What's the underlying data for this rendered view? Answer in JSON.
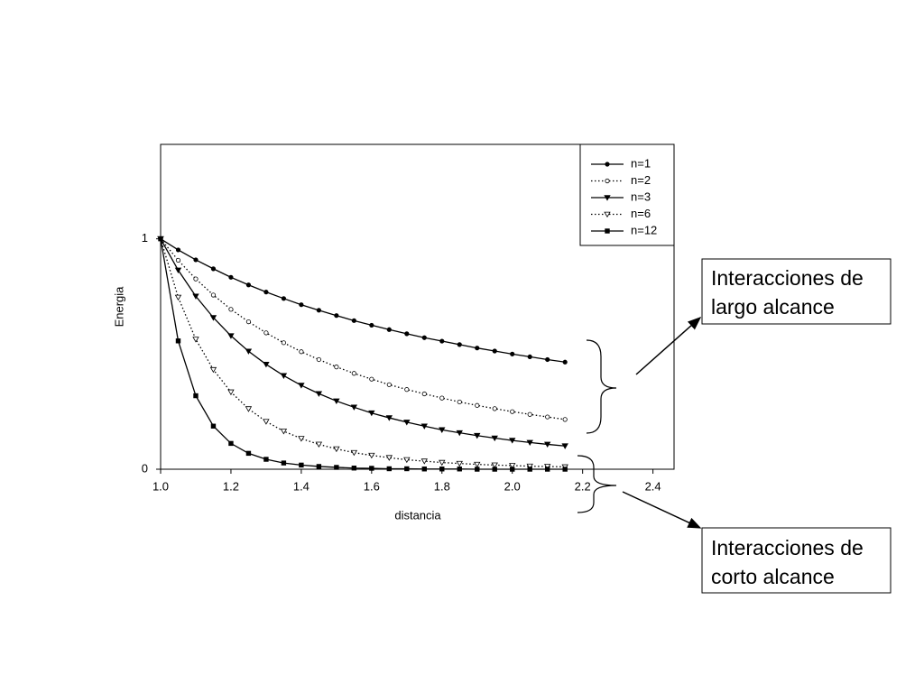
{
  "chart_data": {
    "type": "line",
    "xlabel": "distancia",
    "ylabel": "Energia",
    "x": [
      1.0,
      1.05,
      1.1,
      1.15,
      1.2,
      1.25,
      1.3,
      1.35,
      1.4,
      1.45,
      1.5,
      1.55,
      1.6,
      1.65,
      1.7,
      1.75,
      1.8,
      1.85,
      1.9,
      1.95,
      2.0,
      2.05,
      2.1,
      2.15
    ],
    "series": [
      {
        "name": "n=1",
        "color": "#000000",
        "marker": "circle",
        "filled": true,
        "dash": "solid",
        "values": [
          1,
          0.952,
          0.909,
          0.87,
          0.833,
          0.8,
          0.769,
          0.741,
          0.714,
          0.69,
          0.667,
          0.645,
          0.625,
          0.606,
          0.588,
          0.571,
          0.556,
          0.541,
          0.526,
          0.513,
          0.5,
          0.488,
          0.476,
          0.465
        ]
      },
      {
        "name": "n=2",
        "color": "#000000",
        "marker": "circle",
        "filled": false,
        "dash": "dotted",
        "values": [
          1,
          0.907,
          0.826,
          0.756,
          0.694,
          0.64,
          0.592,
          0.549,
          0.51,
          0.476,
          0.444,
          0.416,
          0.391,
          0.367,
          0.346,
          0.327,
          0.309,
          0.292,
          0.277,
          0.263,
          0.25,
          0.238,
          0.227,
          0.216
        ]
      },
      {
        "name": "n=3",
        "color": "#000000",
        "marker": "triangle-down",
        "filled": true,
        "dash": "solid",
        "values": [
          1,
          0.864,
          0.751,
          0.658,
          0.579,
          0.512,
          0.455,
          0.406,
          0.364,
          0.328,
          0.296,
          0.269,
          0.244,
          0.223,
          0.204,
          0.187,
          0.171,
          0.158,
          0.146,
          0.135,
          0.125,
          0.116,
          0.108,
          0.101
        ]
      },
      {
        "name": "n=6",
        "color": "#000000",
        "marker": "triangle-down",
        "filled": false,
        "dash": "dotted",
        "values": [
          1,
          0.746,
          0.564,
          0.432,
          0.335,
          0.262,
          0.207,
          0.165,
          0.133,
          0.108,
          0.088,
          0.072,
          0.06,
          0.05,
          0.041,
          0.035,
          0.029,
          0.025,
          0.021,
          0.018,
          0.016,
          0.013,
          0.012,
          0.01
        ]
      },
      {
        "name": "n=12",
        "color": "#000000",
        "marker": "square",
        "filled": true,
        "dash": "solid",
        "values": [
          1,
          0.557,
          0.319,
          0.187,
          0.112,
          0.069,
          0.043,
          0.027,
          0.018,
          0.012,
          0.008,
          0.005,
          0.004,
          0.002,
          0.002,
          0.001,
          0.001,
          0.001,
          0,
          0,
          0,
          0,
          0,
          0
        ]
      }
    ],
    "xlim": [
      1.0,
      2.46
    ],
    "ylim": [
      0,
      1.41
    ],
    "xticks": [
      {
        "value": 1,
        "label": "1.0"
      },
      1.2,
      1.4,
      1.6,
      1.8,
      {
        "value": 2,
        "label": "2.0"
      },
      2.2,
      2.4
    ],
    "yticks": [
      0,
      1
    ],
    "legend": "upper right",
    "annotations": [
      {
        "lines": [
          "Interacciones de",
          "largo alcance"
        ]
      },
      {
        "lines": [
          "Interacciones de",
          "corto alcance"
        ]
      }
    ]
  }
}
